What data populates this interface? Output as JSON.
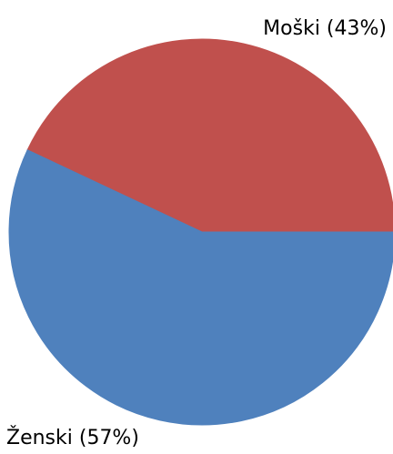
{
  "chart_data": {
    "type": "pie",
    "start_angle": "3 o'clock (0°), counter-clockwise",
    "slices": [
      {
        "label": "Moški (43%)",
        "value": 43,
        "color": "#C0504D"
      },
      {
        "label": "Ženski (57%)",
        "value": 57,
        "color": "#4F81BD"
      }
    ]
  }
}
